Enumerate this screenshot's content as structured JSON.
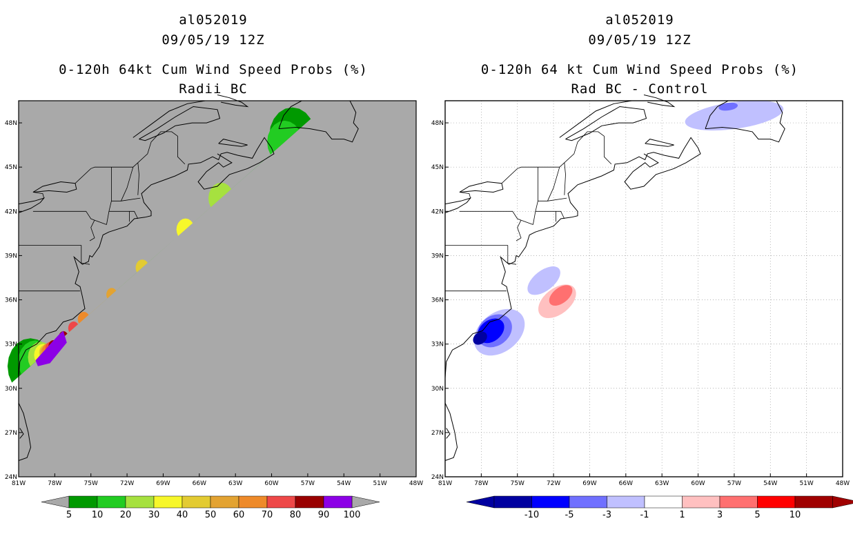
{
  "left_panel": {
    "storm_id": "al052019",
    "datetime": "09/05/19 12Z",
    "title": "0-120h 64kt Cum Wind Speed Probs (%)",
    "subtitle": "Radii BC",
    "colorbar_labels": [
      "5",
      "10",
      "20",
      "30",
      "40",
      "50",
      "60",
      "70",
      "80",
      "90",
      "100"
    ],
    "colorbar_colors": [
      "#009900",
      "#22cc22",
      "#a6e13f",
      "#f7f72a",
      "#e3cb32",
      "#e3a332",
      "#ee8a2a",
      "#ee4848",
      "#990000",
      "#8c00e6"
    ],
    "background_color": "#a9a9a9"
  },
  "right_panel": {
    "storm_id": "al052019",
    "datetime": "09/05/19 12Z",
    "title": "0-120h 64 kt Cum Wind Speed Probs (%)",
    "subtitle": "Rad BC - Control",
    "colorbar_labels": [
      "-10",
      "-5",
      "-3",
      "-1",
      "1",
      "3",
      "5",
      "10"
    ],
    "colorbar_colors": [
      "#0000a0",
      "#0000ff",
      "#7070ff",
      "#c0c0ff",
      "#ffffff",
      "#ffc0c0",
      "#ff7070",
      "#ff0000",
      "#a00000"
    ],
    "background_color": "#ffffff"
  },
  "axes": {
    "lon_labels": [
      "81W",
      "78W",
      "75W",
      "72W",
      "69W",
      "66W",
      "63W",
      "60W",
      "57W",
      "54W",
      "51W",
      "48W"
    ],
    "lat_labels": [
      "24N",
      "27N",
      "30N",
      "33N",
      "36N",
      "39N",
      "42N",
      "45N",
      "48N"
    ],
    "lon_range": [
      -81,
      -48
    ],
    "lat_range": [
      24,
      49.5
    ]
  },
  "chart_data": [
    {
      "type": "heatmap",
      "title": "0-120h 64kt Cum Wind Speed Probs (%) - Radii BC",
      "units": "%",
      "levels": [
        5,
        10,
        20,
        30,
        40,
        50,
        60,
        70,
        80,
        90,
        100
      ],
      "track_axis": {
        "start": [
          -79.6,
          31.8
        ],
        "end": [
          -58.5,
          47.0
        ]
      },
      "max_probability_region": {
        "lon": [
          -79.6,
          -77.3
        ],
        "lat": [
          31.7,
          33.9
        ],
        "level": "90-100"
      },
      "contours": [
        {
          "level": 5,
          "axis_range": [
            -0.02,
            1.01
          ],
          "half_width_deg": 1.9
        },
        {
          "level": 10,
          "axis_range": [
            0.0,
            0.98
          ],
          "half_width_deg": 1.45
        },
        {
          "level": 20,
          "axis_range": [
            0.02,
            0.73
          ],
          "half_width_deg": 1.05
        },
        {
          "level": 30,
          "axis_range": [
            0.03,
            0.59
          ],
          "half_width_deg": 0.75
        },
        {
          "level": 40,
          "axis_range": [
            0.04,
            0.42
          ],
          "half_width_deg": 0.55
        },
        {
          "level": 50,
          "axis_range": [
            0.04,
            0.3
          ],
          "half_width_deg": 0.45
        },
        {
          "level": 60,
          "axis_range": [
            0.05,
            0.19
          ],
          "half_width_deg": 0.5
        },
        {
          "level": 70,
          "axis_range": [
            0.06,
            0.15
          ],
          "half_width_deg": 0.45
        },
        {
          "level": 80,
          "axis_range": [
            0.07,
            0.11
          ],
          "half_width_deg": 0.4
        },
        {
          "level": 90,
          "axis_range": [
            0.0,
            0.08
          ],
          "half_width_deg": 0.62
        }
      ]
    },
    {
      "type": "heatmap",
      "title": "0-120h 64 kt Cum Wind Speed Probs (%) - Rad BC - Control",
      "units": "% difference",
      "levels": [
        -10,
        -5,
        -3,
        -1,
        1,
        3,
        5,
        10
      ],
      "blobs": [
        {
          "sign": "negative",
          "level": "-1 to -3",
          "center": [
            -76.5,
            33.8
          ],
          "extent_lon": [
            -79.5,
            -74.5
          ],
          "extent_lat": [
            31.0,
            35.8
          ]
        },
        {
          "sign": "negative",
          "level": "-3 to -5",
          "center": [
            -76.9,
            33.9
          ],
          "extent_lon": [
            -78.8,
            -75.0
          ],
          "extent_lat": [
            32.3,
            35.5
          ]
        },
        {
          "sign": "negative",
          "level": "-5 to -10",
          "center": [
            -77.2,
            33.9
          ],
          "extent_lon": [
            -78.6,
            -75.9
          ],
          "extent_lat": [
            32.6,
            35.1
          ]
        },
        {
          "sign": "negative",
          "level": "< -10",
          "center": [
            -78.1,
            33.4
          ],
          "extent_lon": [
            -79.0,
            -77.4
          ],
          "extent_lat": [
            32.9,
            34.1
          ]
        },
        {
          "sign": "negative",
          "level": "-1 to -3",
          "center": [
            -72.8,
            37.3
          ],
          "extent_lon": [
            -74.6,
            -70.6
          ],
          "extent_lat": [
            36.3,
            38.4
          ]
        },
        {
          "sign": "positive",
          "level": "1 to 3",
          "center": [
            -71.7,
            35.9
          ],
          "extent_lon": [
            -73.8,
            -69.3
          ],
          "extent_lat": [
            34.8,
            37.5
          ]
        },
        {
          "sign": "positive",
          "level": "3 to 5",
          "center": [
            -71.4,
            36.3
          ],
          "extent_lon": [
            -72.9,
            -70.1
          ],
          "extent_lat": [
            35.6,
            37.2
          ]
        },
        {
          "sign": "negative",
          "level": "-1 to -3",
          "center": [
            -57.0,
            48.5
          ],
          "extent_lon": [
            -61.8,
            -51.5
          ],
          "extent_lat": [
            46.7,
            49.5
          ]
        },
        {
          "sign": "negative",
          "level": "-3 to -5",
          "center": [
            -57.5,
            49.1
          ],
          "extent_lon": [
            -58.5,
            -56.5
          ],
          "extent_lat": [
            48.7,
            49.5
          ]
        }
      ]
    }
  ]
}
